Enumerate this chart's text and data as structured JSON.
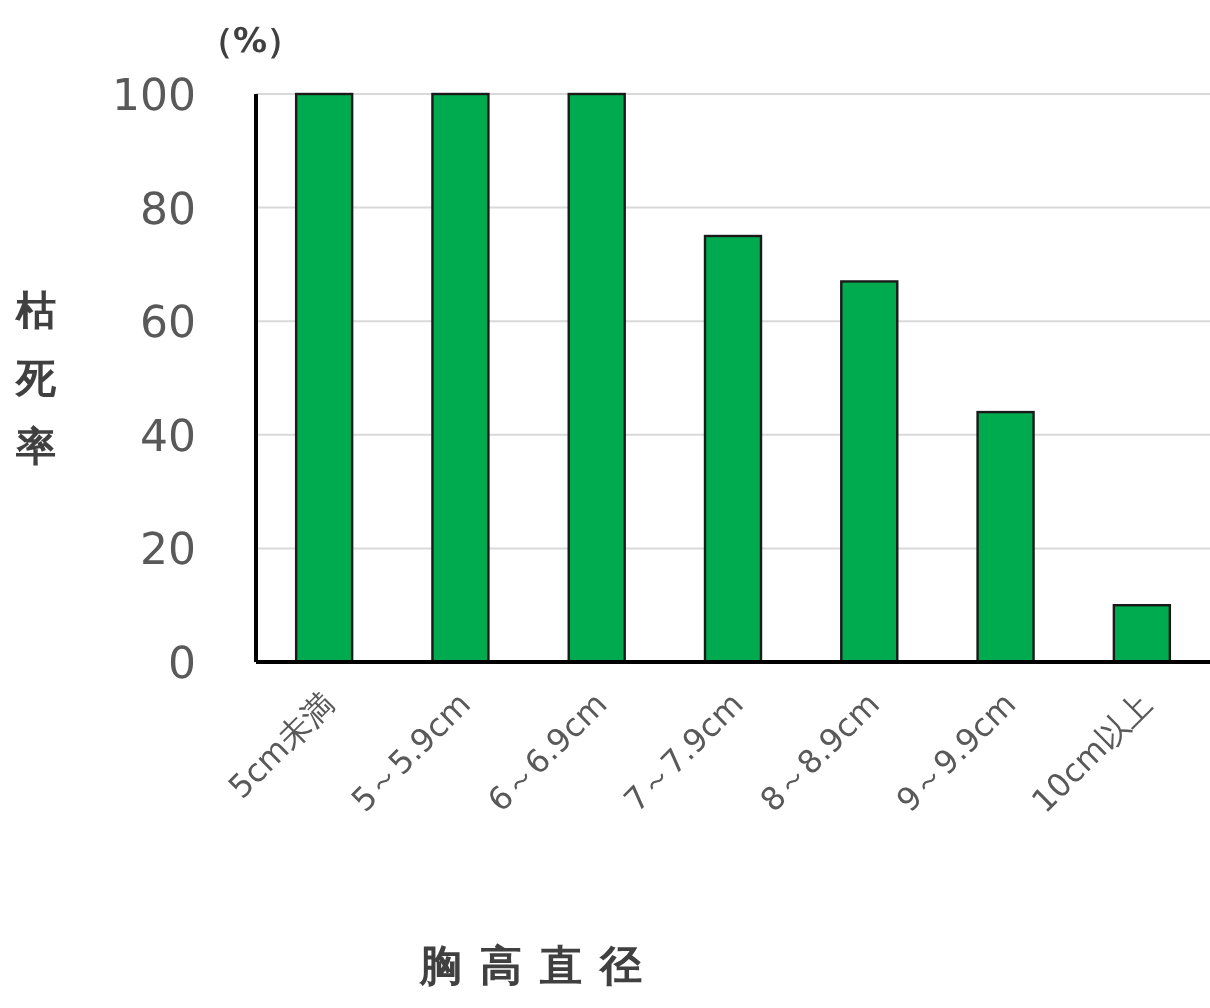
{
  "chart_data": {
    "type": "bar",
    "ylabel": "枯死率",
    "xlabel": "胸高直径",
    "annotations": [
      "（%）"
    ],
    "categories": [
      "5cm未満",
      "5～5.9cm",
      "6～6.9cm",
      "7～7.9cm",
      "8～8.9cm",
      "9～9.9cm",
      "10cm以上"
    ],
    "values": [
      100,
      100,
      100,
      75,
      67,
      44,
      10
    ],
    "color": "#00aa4f",
    "ylim": [
      0,
      100
    ],
    "yticks": [
      0,
      20,
      40,
      60,
      80,
      100
    ],
    "grid": "y"
  }
}
